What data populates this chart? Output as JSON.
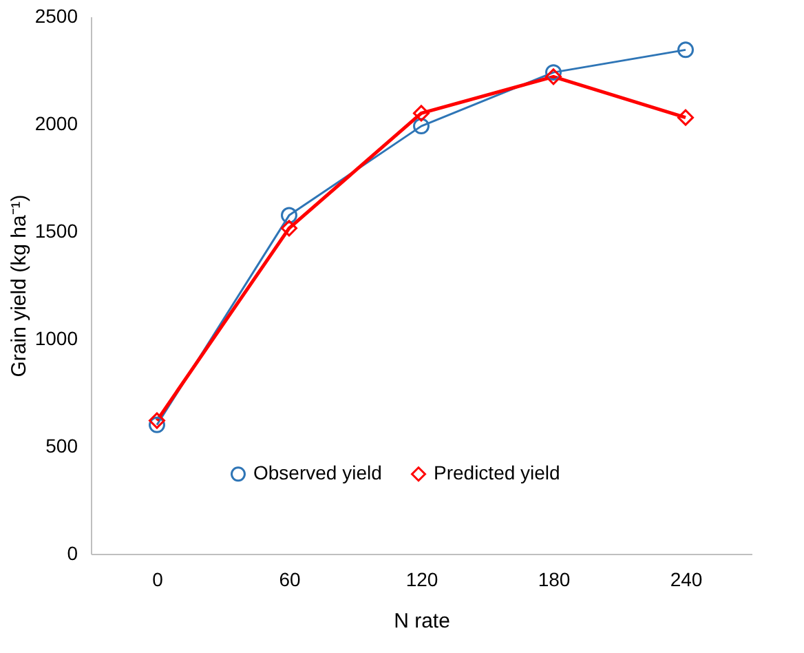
{
  "chart_data": {
    "type": "line",
    "xlabel": "N rate",
    "ylabel": "Grain yield (kg ha⁻¹)",
    "categories": [
      "0",
      "60",
      "120",
      "180",
      "240"
    ],
    "series": [
      {
        "name": "Observed yield",
        "color": "#2e75b6",
        "marker": "circle",
        "values": [
          600,
          1575,
          1990,
          2240,
          2345
        ]
      },
      {
        "name": "Predicted yield",
        "color": "#ff0000",
        "marker": "diamond",
        "values": [
          620,
          1515,
          2050,
          2220,
          2030
        ]
      }
    ],
    "ylim": [
      0,
      2500
    ],
    "yticks": [
      0,
      500,
      1000,
      1500,
      2000,
      2500
    ],
    "grid": false,
    "legend": "bottom"
  }
}
